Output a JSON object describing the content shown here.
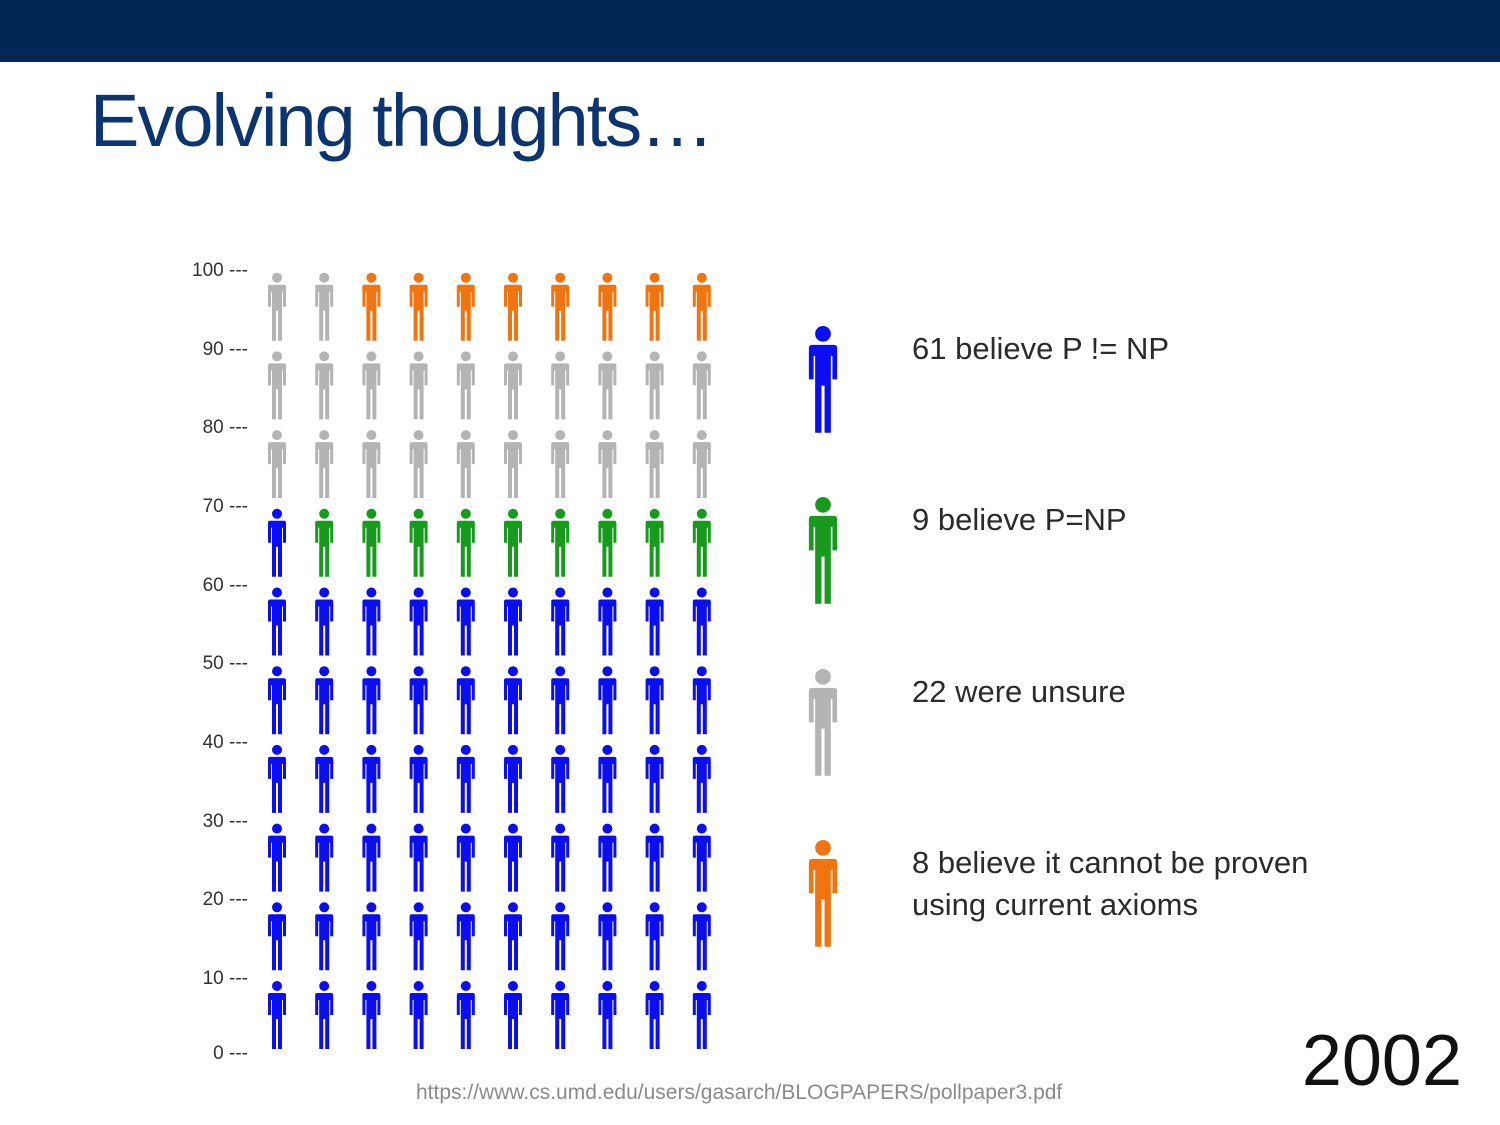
{
  "slide": {
    "title": "Evolving thoughts…",
    "year": "2002",
    "source_url": "https://www.cs.umd.edu/users/gasarch/BLOGPAPERS/pollpaper3.pdf"
  },
  "chart_data": {
    "type": "pictogram",
    "unit": 1,
    "columns": 10,
    "ylim": [
      0,
      100
    ],
    "y_ticks": [
      "100 ---",
      "90 ---",
      "80 ---",
      "70 ---",
      "60 ---",
      "50 ---",
      "40 ---",
      "30 ---",
      "20 ---",
      "10 ---",
      "0 ---"
    ],
    "series": [
      {
        "value": 61,
        "color": "#0a0ef0",
        "label": "61 believe P != NP"
      },
      {
        "value": 9,
        "color": "#179a1d",
        "label": "9 believe P=NP"
      },
      {
        "value": 22,
        "color": "#b4b4b4",
        "label": "22 were unsure"
      },
      {
        "value": 8,
        "color": "#f07510",
        "label": "8 believe it cannot be proven\nusing current axioms"
      }
    ]
  }
}
